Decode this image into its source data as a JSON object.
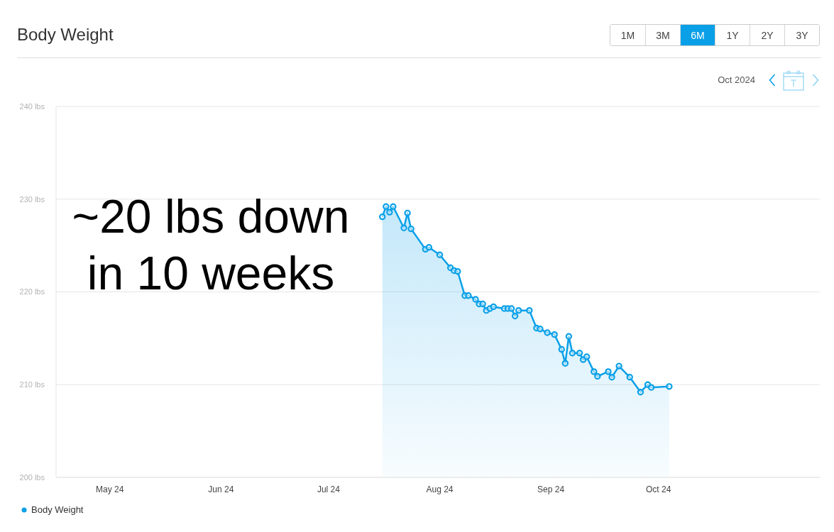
{
  "chart_data": {
    "type": "area",
    "title": "Body Weight",
    "x": [
      "2024-07-16",
      "2024-07-17",
      "2024-07-18",
      "2024-07-19",
      "2024-07-22",
      "2024-07-23",
      "2024-07-24",
      "2024-07-28",
      "2024-07-29",
      "2024-08-01",
      "2024-08-04",
      "2024-08-05",
      "2024-08-06",
      "2024-08-08",
      "2024-08-09",
      "2024-08-11",
      "2024-08-12",
      "2024-08-13",
      "2024-08-14",
      "2024-08-15",
      "2024-08-16",
      "2024-08-19",
      "2024-08-20",
      "2024-08-21",
      "2024-08-22",
      "2024-08-23",
      "2024-08-26",
      "2024-08-28",
      "2024-08-29",
      "2024-08-31",
      "2024-09-02",
      "2024-09-04",
      "2024-09-05",
      "2024-09-06",
      "2024-09-07",
      "2024-09-09",
      "2024-09-10",
      "2024-09-11",
      "2024-09-13",
      "2024-09-14",
      "2024-09-17",
      "2024-09-18",
      "2024-09-20",
      "2024-09-23",
      "2024-09-26",
      "2024-09-28",
      "2024-09-29",
      "2024-10-04"
    ],
    "series": [
      {
        "name": "Body Weight",
        "color": "#0aa0e8",
        "values": [
          228.1,
          229.2,
          228.6,
          229.2,
          226.9,
          228.5,
          226.8,
          224.6,
          224.8,
          224.0,
          222.6,
          222.3,
          222.2,
          219.6,
          219.6,
          219.2,
          218.7,
          218.7,
          218.0,
          218.2,
          218.4,
          218.2,
          218.2,
          218.2,
          217.4,
          218.0,
          218.0,
          216.1,
          216.0,
          215.6,
          215.4,
          213.8,
          212.3,
          215.2,
          213.4,
          213.4,
          212.7,
          213.0,
          211.4,
          210.9,
          211.4,
          210.8,
          212.0,
          210.8,
          209.2,
          210.0,
          209.7,
          209.8
        ]
      }
    ],
    "xlim": [
      "2024-04-16",
      "2024-11-15"
    ],
    "xticks": [
      {
        "value": "2024-05-01",
        "label": "May 24"
      },
      {
        "value": "2024-06-01",
        "label": "Jun 24"
      },
      {
        "value": "2024-07-01",
        "label": "Jul 24"
      },
      {
        "value": "2024-08-01",
        "label": "Aug 24"
      },
      {
        "value": "2024-09-01",
        "label": "Sep 24"
      },
      {
        "value": "2024-10-01",
        "label": "Oct 24"
      }
    ],
    "ylim": [
      200,
      240
    ],
    "yticks": [
      {
        "value": 200,
        "label": "200 lbs"
      },
      {
        "value": 210,
        "label": "210 lbs"
      },
      {
        "value": 220,
        "label": "220 lbs"
      },
      {
        "value": 230,
        "label": "230 lbs"
      },
      {
        "value": 240,
        "label": "240 lbs"
      }
    ],
    "grid": "y",
    "legend": "bottom left",
    "marker": "circle",
    "annotations": [
      "~20 lbs down\nin 10 weeks",
      "1M",
      "3M",
      "6M",
      "1Y",
      "2Y",
      "3Y",
      "Oct 2024"
    ]
  }
}
